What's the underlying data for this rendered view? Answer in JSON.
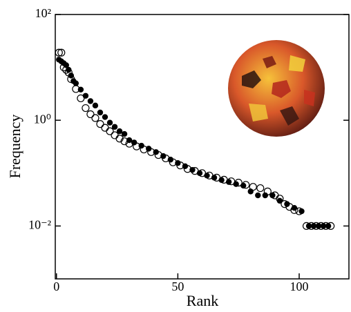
{
  "chart_data": {
    "type": "scatter",
    "x_label": "Rank",
    "y_label": "Frequency",
    "xlim": [
      -0.5,
      120.5
    ],
    "xticks": [
      0,
      50,
      100
    ],
    "ylim": [
      0.001,
      100
    ],
    "log_y": true,
    "yticks": [
      {
        "value": 100,
        "label": "10²"
      },
      {
        "value": 1,
        "label": "10⁰"
      },
      {
        "value": 0.01,
        "label": "10⁻²"
      }
    ],
    "series": [
      {
        "marker": "open",
        "color": "#000000",
        "x": [
          1,
          2,
          3,
          4,
          5,
          6,
          8,
          10,
          12,
          14,
          16,
          18,
          20,
          22,
          24,
          26,
          28,
          30,
          33,
          36,
          39,
          42,
          45,
          48,
          51,
          54,
          57,
          60,
          63,
          66,
          69,
          72,
          75,
          78,
          81,
          84,
          87,
          90,
          92,
          94,
          96,
          98,
          100,
          103,
          105,
          107,
          109,
          111,
          113
        ],
        "values": [
          19,
          19,
          10,
          9,
          8,
          6,
          3.9,
          2.6,
          1.7,
          1.3,
          1.1,
          0.85,
          0.72,
          0.62,
          0.52,
          0.45,
          0.4,
          0.36,
          0.32,
          0.28,
          0.25,
          0.22,
          0.19,
          0.16,
          0.14,
          0.12,
          0.11,
          0.1,
          0.09,
          0.082,
          0.075,
          0.07,
          0.066,
          0.06,
          0.055,
          0.052,
          0.045,
          0.038,
          0.033,
          0.026,
          0.023,
          0.02,
          0.019,
          0.01,
          0.01,
          0.01,
          0.01,
          0.01,
          0.01
        ]
      },
      {
        "marker": "filled",
        "color": "#000000",
        "x": [
          1,
          2,
          3,
          4,
          5,
          6,
          7,
          8,
          10,
          12,
          14,
          16,
          18,
          20,
          22,
          24,
          26,
          28,
          30,
          32,
          35,
          38,
          41,
          44,
          47,
          50,
          53,
          56,
          59,
          62,
          65,
          68,
          71,
          74,
          77,
          80,
          83,
          86,
          89,
          92,
          95,
          98,
          101,
          104,
          106,
          108,
          110,
          112
        ],
        "values": [
          14,
          13,
          12,
          11,
          9,
          7,
          5.5,
          5,
          3.8,
          2.9,
          2.3,
          1.9,
          1.4,
          1.15,
          0.9,
          0.75,
          0.62,
          0.55,
          0.42,
          0.38,
          0.33,
          0.29,
          0.25,
          0.21,
          0.18,
          0.155,
          0.135,
          0.115,
          0.1,
          0.09,
          0.082,
          0.074,
          0.068,
          0.062,
          0.058,
          0.045,
          0.038,
          0.038,
          0.038,
          0.03,
          0.026,
          0.022,
          0.019,
          0.01,
          0.01,
          0.01,
          0.01,
          0.01
        ]
      }
    ]
  }
}
